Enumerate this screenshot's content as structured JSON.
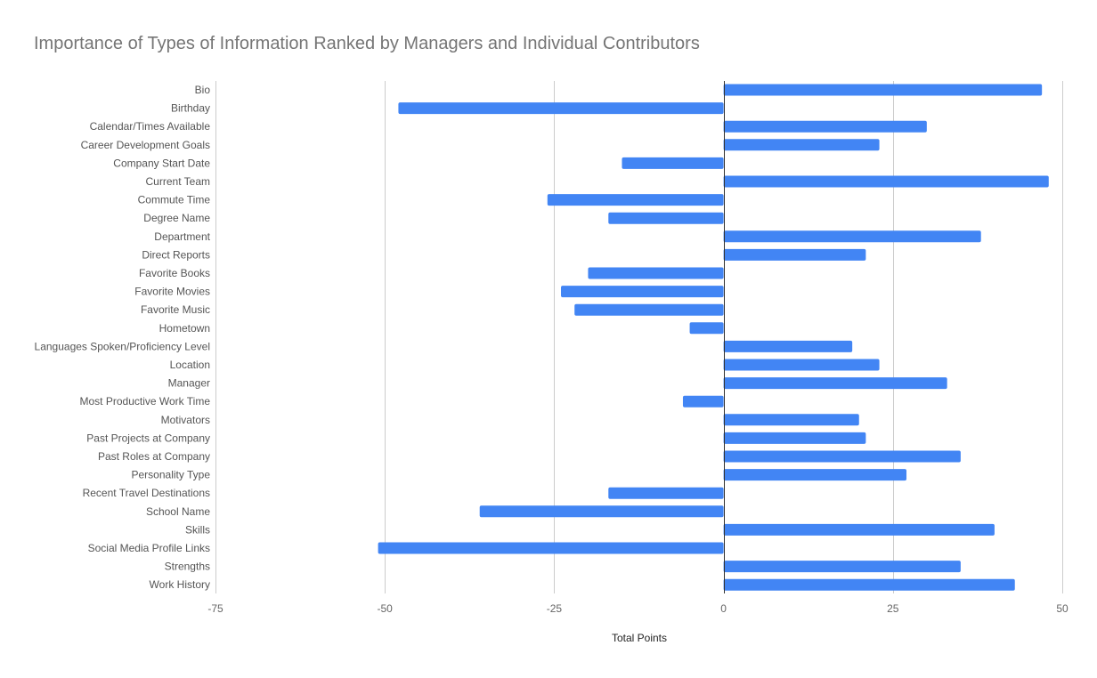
{
  "chart_data": {
    "type": "bar",
    "orientation": "horizontal",
    "title": "Importance of Types of Information Ranked by Managers and Individual Contributors",
    "xlabel": "Total Points",
    "ylabel": "",
    "xlim": [
      -75,
      50
    ],
    "xticks": [
      -75,
      -50,
      -25,
      0,
      25,
      50
    ],
    "grid": true,
    "legend": "none",
    "bar_color": "#4285f4",
    "categories": [
      "Bio",
      "Birthday",
      "Calendar/Times Available",
      "Career Development Goals",
      "Company Start Date",
      "Current Team",
      "Commute Time",
      "Degree Name",
      "Department",
      "Direct Reports",
      "Favorite Books",
      "Favorite Movies",
      "Favorite Music",
      "Hometown",
      "Languages Spoken/Proficiency Level",
      "Location",
      "Manager",
      "Most Productive Work Time",
      "Motivators",
      "Past Projects at Company",
      "Past Roles at Company",
      "Personality Type",
      "Recent Travel Destinations",
      "School Name",
      "Skills",
      "Social Media Profile Links",
      "Strengths",
      "Work History"
    ],
    "values": [
      47,
      -48,
      30,
      23,
      -15,
      48,
      -26,
      -17,
      38,
      21,
      -20,
      -24,
      -22,
      -5,
      19,
      23,
      33,
      -6,
      20,
      21,
      35,
      27,
      -17,
      -36,
      40,
      -51,
      35,
      43
    ]
  }
}
